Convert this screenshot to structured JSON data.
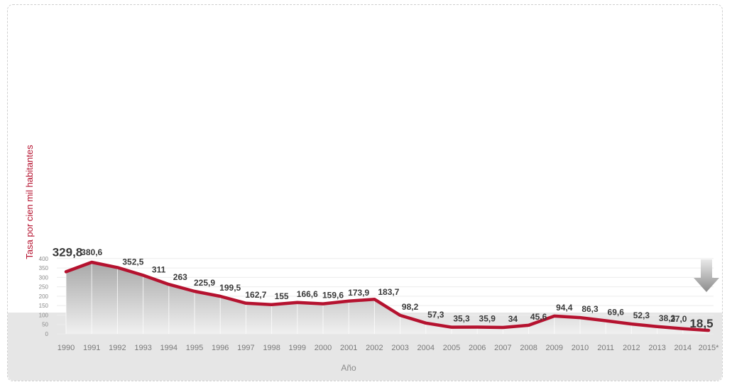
{
  "chart_data": {
    "type": "area",
    "xlabel": "Año",
    "ylabel": "Tasa por cien mil habitantes",
    "ylim": [
      0,
      400
    ],
    "yticks": [
      0,
      50,
      100,
      150,
      200,
      250,
      300,
      350,
      400
    ],
    "grid": true,
    "categories": [
      "1990",
      "1991",
      "1992",
      "1993",
      "1994",
      "1995",
      "1996",
      "1997",
      "1998",
      "1999",
      "2000",
      "2001",
      "2002",
      "2003",
      "2004",
      "2005",
      "2006",
      "2007",
      "2008",
      "2009",
      "2010",
      "2011",
      "2012",
      "2013",
      "2014",
      "2015*"
    ],
    "values": [
      329.8,
      380.6,
      352.5,
      311,
      263,
      225.9,
      199.5,
      162.7,
      155,
      166.6,
      159.6,
      173.9,
      183.7,
      98.2,
      57.3,
      35.3,
      35.9,
      34,
      45.6,
      94.4,
      86.3,
      69.6,
      52.3,
      38.3,
      27.0,
      18.5
    ],
    "labels": [
      "329,8",
      "380,6",
      "352,5",
      "311",
      "263",
      "225,9",
      "199,5",
      "162,7",
      "155",
      "166,6",
      "159,6",
      "173,9",
      "183,7",
      "98,2",
      "57,3",
      "35,3",
      "35,9",
      "34",
      "45,6",
      "94,4",
      "86,3",
      "69,6",
      "52,3",
      "38,3",
      "27,0",
      "18,5"
    ],
    "line_color": "#b5122f",
    "fill_top_color": "#a8a8a8",
    "fill_bottom_color": "#f0f0f0",
    "arrow_icon": "down-arrow-icon"
  }
}
